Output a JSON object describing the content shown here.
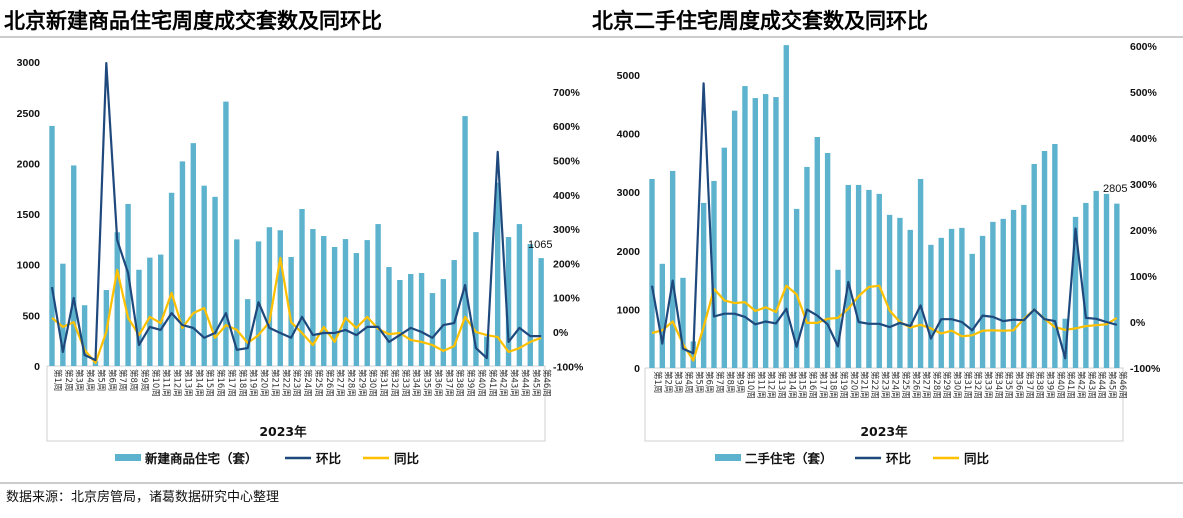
{
  "source_note": "数据来源：北京房管局，诸葛数据研究中心整理",
  "colors": {
    "bar": "#5DB3CE",
    "mom": "#1F497D",
    "yoy": "#FFC000"
  },
  "chart_data": [
    {
      "type": "bar+line",
      "title": "北京新建商品住宅周度成交套数及同环比",
      "xlabel": "2023年",
      "categories": [
        "第1周",
        "第2周",
        "第3周",
        "第4周",
        "第5周",
        "第6周",
        "第7周",
        "第8周",
        "第9周",
        "第10周",
        "第11周",
        "第12周",
        "第13周",
        "第14周",
        "第15周",
        "第16周",
        "第17周",
        "第18周",
        "第19周",
        "第20周",
        "第21周",
        "第22周",
        "第23周",
        "第24周",
        "第25周",
        "第26周",
        "第27周",
        "第28周",
        "第29周",
        "第30周",
        "第31周",
        "第32周",
        "第33周",
        "第34周",
        "第35周",
        "第36周",
        "第37周",
        "第38周",
        "第39周",
        "第40周",
        "第41周",
        "第42周",
        "第43周",
        "第44周",
        "第45周",
        "第46周"
      ],
      "ylim_left": [
        0,
        3000
      ],
      "yticks_left": [
        "0",
        "500",
        "1000",
        "1500",
        "2000",
        "2500",
        "3000"
      ],
      "ylim_right_pct": [
        -100,
        800
      ],
      "yticks_right": [
        "-100%",
        "0%",
        "100%",
        "200%",
        "300%",
        "400%",
        "500%",
        "600%",
        "700%"
      ],
      "series": [
        {
          "name": "新建商品住宅（套）",
          "type": "bar",
          "axis": "left",
          "values": [
            2370,
            1010,
            1980,
            600,
            50,
            750,
            1320,
            1600,
            950,
            1070,
            1100,
            1710,
            2020,
            2200,
            1780,
            1670,
            2610,
            1250,
            660,
            1230,
            1370,
            1340,
            1076,
            1550,
            1352,
            1283,
            1175,
            1253,
            1115,
            1243,
            1401,
            977,
            849,
            908,
            918,
            720,
            858,
            1046,
            2467,
            1322,
            290,
            1810,
            1273,
            1401,
            1204,
            1065
          ]
        },
        {
          "name": "环比",
          "type": "line",
          "axis": "right",
          "unit": "%",
          "values": [
            131,
            -58,
            99,
            -67,
            -82,
            784,
            268,
            172,
            -38,
            15,
            6,
            55,
            20,
            12,
            -17,
            -3,
            55,
            -52,
            -47,
            87,
            12,
            -3,
            -17,
            44,
            -9,
            -3,
            -3,
            6,
            -9,
            15,
            15,
            -29,
            -9,
            12,
            0,
            -17,
            20,
            26,
            137,
            -47,
            -76,
            525,
            -29,
            12,
            -12,
            -12
          ]
        },
        {
          "name": "同比",
          "type": "line",
          "axis": "right",
          "unit": "%",
          "values": [
            41,
            15,
            29,
            -52,
            -90,
            0,
            181,
            41,
            -9,
            44,
            26,
            114,
            12,
            55,
            70,
            -17,
            20,
            6,
            -32,
            -9,
            29,
            216,
            29,
            -3,
            -38,
            15,
            -29,
            41,
            12,
            44,
            9,
            -6,
            -3,
            -23,
            -29,
            -38,
            -55,
            -41,
            44,
            0,
            -9,
            -15,
            -58,
            -47,
            -29,
            -17
          ]
        }
      ],
      "data_label": "1065",
      "legend": "bottom"
    },
    {
      "type": "bar+line",
      "title": "北京二手住宅周度成交套数及同环比",
      "xlabel": "2023年",
      "categories": [
        "第1周",
        "第2周",
        "第3周",
        "第4周",
        "第5周",
        "第6周",
        "第7周",
        "第8周",
        "第9周",
        "第10周",
        "第11周",
        "第12周",
        "第13周",
        "第14周",
        "第15周",
        "第16周",
        "第17周",
        "第18周",
        "第19周",
        "第20周",
        "第21周",
        "第22周",
        "第23周",
        "第24周",
        "第25周",
        "第26周",
        "第27周",
        "第28周",
        "第29周",
        "第30周",
        "第31周",
        "第32周",
        "第33周",
        "第34周",
        "第35周",
        "第36周",
        "第37周",
        "第38周",
        "第39周",
        "第40周",
        "第41周",
        "第42周",
        "第43周",
        "第44周",
        "第45周",
        "第46周"
      ],
      "ylim_left": [
        0,
        5500
      ],
      "yticks_left": [
        "0",
        "1000",
        "2000",
        "3000",
        "4000",
        "5000"
      ],
      "ylim_right_pct": [
        -100,
        600
      ],
      "yticks_right": [
        "-100%",
        "0%",
        "100%",
        "200%",
        "300%",
        "400%",
        "500%",
        "600%"
      ],
      "series": [
        {
          "name": "二手住宅（套）",
          "type": "bar",
          "axis": "left",
          "values": [
            3226,
            1778,
            3363,
            1539,
            454,
            2817,
            3192,
            3760,
            4391,
            4811,
            4606,
            4675,
            4624,
            5510,
            2715,
            3431,
            3942,
            3669,
            1676,
            3124,
            3124,
            3039,
            2971,
            2613,
            2562,
            2357,
            3226,
            2102,
            2221,
            2374,
            2391,
            1948,
            2255,
            2494,
            2545,
            2698,
            2783,
            3482,
            3703,
            3823,
            841,
            2579,
            2817,
            3022,
            2971,
            2805
          ]
        },
        {
          "name": "环比",
          "type": "line",
          "axis": "right",
          "unit": "%",
          "values": [
            79,
            -47,
            90,
            -58,
            -68,
            519,
            12,
            18,
            18,
            11,
            -5,
            1,
            -3,
            29,
            -54,
            27,
            14,
            -5,
            -53,
            87,
            0,
            -4,
            -4,
            -11,
            -2,
            -9,
            36,
            -36,
            6,
            6,
            0,
            -18,
            14,
            11,
            2,
            5,
            4,
            27,
            6,
            2,
            -79,
            203,
            9,
            7,
            0,
            -6
          ]
        },
        {
          "name": "同比",
          "type": "line",
          "axis": "right",
          "unit": "%",
          "values": [
            -24,
            -18,
            1,
            -48,
            -84,
            -11,
            72,
            47,
            41,
            43,
            24,
            32,
            22,
            79,
            60,
            -2,
            -2,
            7,
            9,
            29,
            56,
            76,
            79,
            25,
            0,
            -12,
            -6,
            -14,
            -25,
            -19,
            -31,
            -29,
            -19,
            -18,
            -19,
            -18,
            7,
            27,
            7,
            -11,
            -17,
            -14,
            -9,
            -7,
            -5,
            9
          ]
        }
      ],
      "data_label": "2805",
      "legend": "bottom"
    }
  ]
}
